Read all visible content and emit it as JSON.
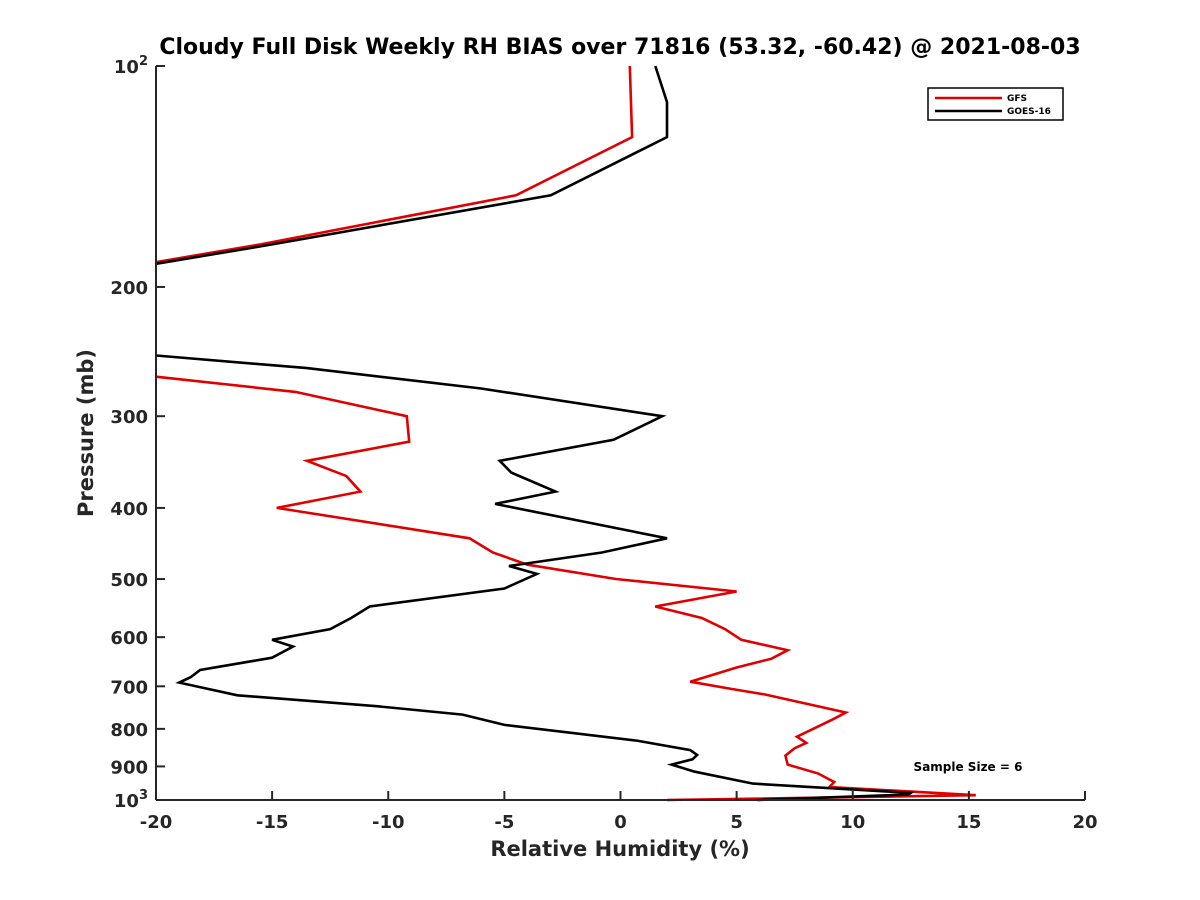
{
  "chart_data": {
    "type": "line",
    "title": "Cloudy Full Disk Weekly RH BIAS over 71816 (53.32, -60.42) @ 2021-08-03",
    "xlabel": "Relative Humidity (%)",
    "ylabel": "Pressure (mb)",
    "xlim": [
      -20,
      20
    ],
    "ylim": [
      100,
      1000
    ],
    "y_scale": "log",
    "y_reversed": true,
    "grid": false,
    "legend_position": "top-right",
    "x_ticks": [
      {
        "value": -20,
        "label": "-20"
      },
      {
        "value": -15,
        "label": "-15"
      },
      {
        "value": -10,
        "label": "-10"
      },
      {
        "value": -5,
        "label": "-5"
      },
      {
        "value": 0,
        "label": "0"
      },
      {
        "value": 5,
        "label": "5"
      },
      {
        "value": 10,
        "label": "10"
      },
      {
        "value": 15,
        "label": "15"
      },
      {
        "value": 20,
        "label": "20"
      }
    ],
    "y_ticks": [
      {
        "value": 100,
        "label": "10",
        "sup": "2"
      },
      {
        "value": 200,
        "label": "200",
        "sup": ""
      },
      {
        "value": 300,
        "label": "300",
        "sup": ""
      },
      {
        "value": 400,
        "label": "400",
        "sup": ""
      },
      {
        "value": 500,
        "label": "500",
        "sup": ""
      },
      {
        "value": 600,
        "label": "600",
        "sup": ""
      },
      {
        "value": 700,
        "label": "700",
        "sup": ""
      },
      {
        "value": 800,
        "label": "800",
        "sup": ""
      },
      {
        "value": 900,
        "label": "900",
        "sup": ""
      },
      {
        "value": 1000,
        "label": "10",
        "sup": "3"
      }
    ],
    "annotation": "Sample Size = 6",
    "series": [
      {
        "name": "GFS",
        "color": "#e00000",
        "segments": [
          [
            [
              0.4,
              100
            ],
            [
              0.5,
              125
            ],
            [
              -4.5,
              150
            ],
            [
              -15.5,
              175
            ],
            [
              -20,
              185
            ]
          ],
          [
            [
              -20,
              265
            ],
            [
              -14,
              278
            ],
            [
              -9.2,
              300
            ],
            [
              -9.1,
              325
            ],
            [
              -13.5,
              345
            ],
            [
              -11.8,
              362
            ],
            [
              -11.2,
              380
            ],
            [
              -14.8,
              400
            ],
            [
              -6.5,
              440
            ],
            [
              -5.5,
              460
            ],
            [
              -4,
              478
            ],
            [
              -0.2,
              500
            ],
            [
              5,
              520
            ],
            [
              1.5,
              545
            ],
            [
              3.5,
              565
            ],
            [
              4.5,
              585
            ],
            [
              5.2,
              605
            ],
            [
              7.2,
              625
            ],
            [
              6.5,
              642
            ],
            [
              5,
              660
            ],
            [
              3,
              690
            ],
            [
              4.7,
              705
            ],
            [
              6.2,
              718
            ],
            [
              9.7,
              760
            ],
            [
              9.2,
              775
            ],
            [
              7.6,
              820
            ],
            [
              8,
              836
            ],
            [
              7.5,
              850
            ],
            [
              7.1,
              870
            ],
            [
              7.2,
              895
            ],
            [
              8.5,
              920
            ],
            [
              9.2,
              945
            ],
            [
              9,
              960
            ],
            [
              15.3,
              985
            ],
            [
              2,
              1000
            ]
          ]
        ]
      },
      {
        "name": "GOES-16",
        "color": "#000000",
        "segments": [
          [
            [
              1.5,
              100
            ],
            [
              2,
              112
            ],
            [
              2,
              125
            ],
            [
              -3,
              150
            ],
            [
              -15,
              175
            ],
            [
              -20,
              186
            ]
          ],
          [
            [
              -20,
              248
            ],
            [
              -13.5,
              258
            ],
            [
              -6,
              275
            ],
            [
              1.8,
              300
            ],
            [
              -0.3,
              323
            ],
            [
              -5.2,
              345
            ],
            [
              -4.7,
              358
            ],
            [
              -2.8,
              380
            ],
            [
              -5.4,
              395
            ],
            [
              2,
              440
            ],
            [
              -0.8,
              460
            ],
            [
              -4.8,
              480
            ],
            [
              -3.6,
              492
            ],
            [
              -5,
              515
            ],
            [
              -10.8,
              545
            ],
            [
              -11.6,
              565
            ],
            [
              -12.5,
              585
            ],
            [
              -15,
              605
            ],
            [
              -14.1,
              618
            ],
            [
              -15,
              640
            ],
            [
              -18.1,
              665
            ],
            [
              -18.5,
              680
            ],
            [
              -19,
              692
            ],
            [
              -16.5,
              720
            ],
            [
              -10.5,
              745
            ],
            [
              -6.8,
              765
            ],
            [
              -5,
              790
            ],
            [
              0.7,
              830
            ],
            [
              3,
              855
            ],
            [
              3.3,
              868
            ],
            [
              3.1,
              880
            ],
            [
              2.2,
              895
            ],
            [
              3.2,
              915
            ],
            [
              5.7,
              950
            ],
            [
              12.5,
              978
            ],
            [
              12.4,
              983
            ],
            [
              5.9,
              1000
            ]
          ]
        ]
      }
    ]
  }
}
